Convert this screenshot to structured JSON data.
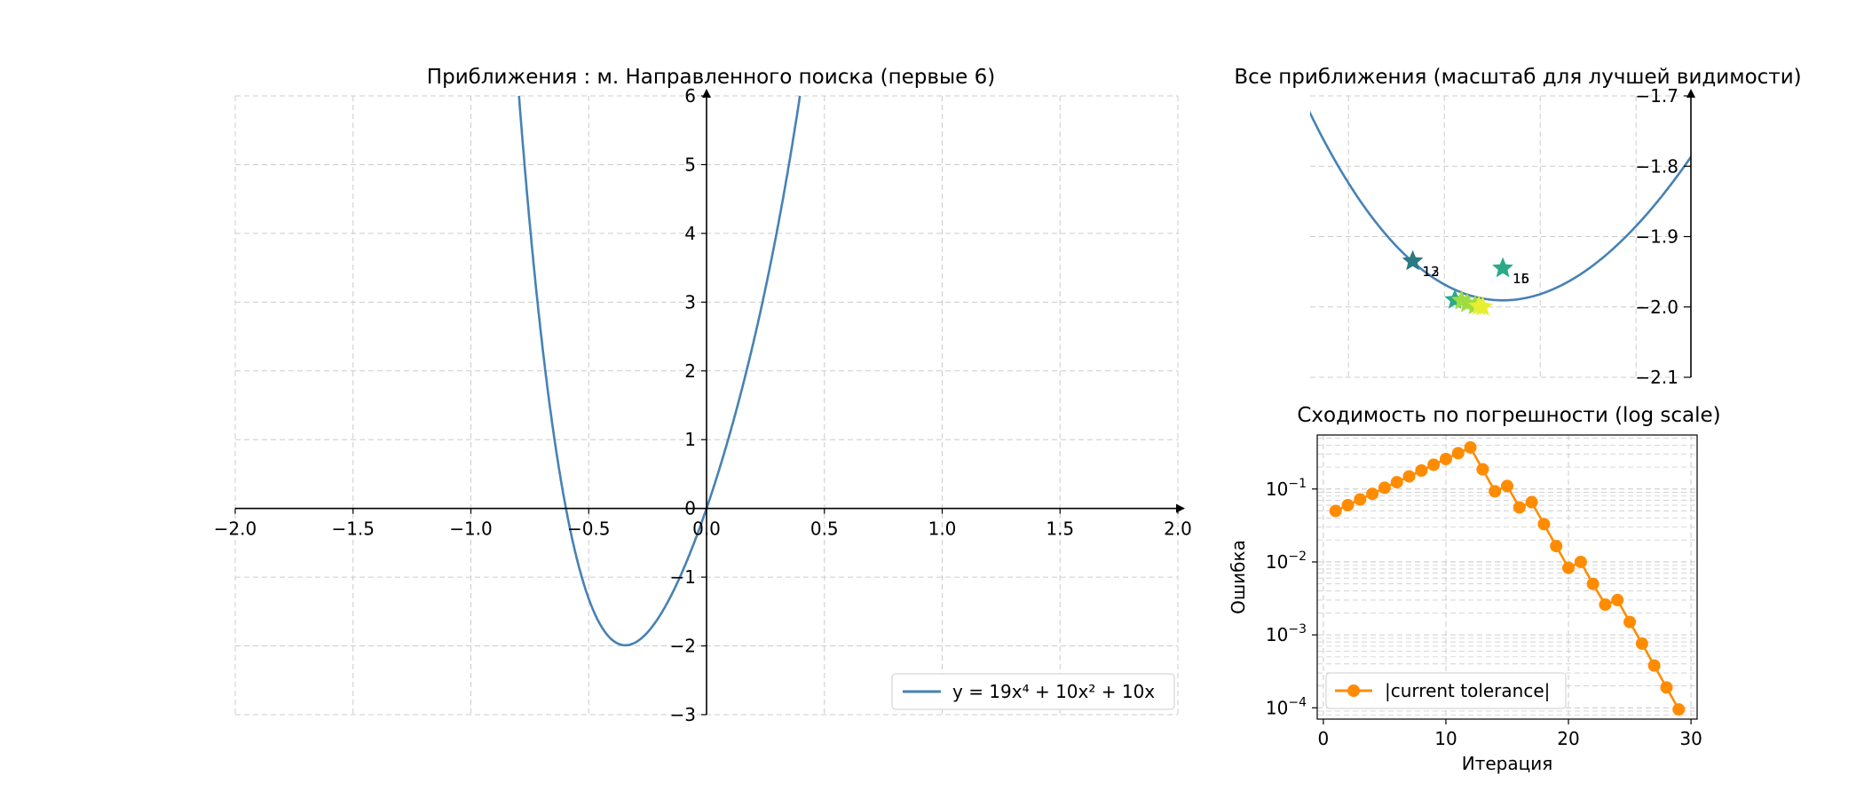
{
  "colors": {
    "curve": "#4682b4",
    "tolerance": "#ff8c00",
    "grid": "#cccccc",
    "legend_border": "#cccccc",
    "star_early": "#2a7a82",
    "star_mid": "#2aaa8a",
    "star_late": "#9edc40",
    "star_last": "#e8ee30"
  },
  "chart_data": [
    {
      "type": "line",
      "title": "Приближения : м. Направленного поиска (первые 6)",
      "function": {
        "coeffs": {
          "x4": 19,
          "x2": 10,
          "x1": 10
        }
      },
      "series": [
        {
          "name": "y = 19x⁴ + 10x² + 10x"
        }
      ],
      "xlim": [
        -2.0,
        2.0
      ],
      "ylim": [
        -3,
        6
      ],
      "xticks": [
        -2.0,
        -1.5,
        -1.0,
        -0.5,
        0.0,
        0.5,
        1.0,
        1.5,
        2.0
      ],
      "xtick_labels": [
        "−2.0",
        "−1.5",
        "−1.0",
        "−0.5",
        "0.0",
        "0.5",
        "1.0",
        "1.5",
        "2.0"
      ],
      "yticks": [
        -3,
        -2,
        -1,
        0,
        1,
        2,
        3,
        4,
        5,
        6
      ],
      "ytick_labels": [
        "−3",
        "−2",
        "−1",
        "0",
        "1",
        "2",
        "3",
        "4",
        "5",
        "6"
      ],
      "axes_through_origin": true,
      "grid": true,
      "legend": "lower-right"
    },
    {
      "type": "scatter",
      "title": "Все приближения (масштаб для лучшей видимости)",
      "xlim": [
        -0.445,
        -0.245
      ],
      "ylim": [
        -2.1,
        -1.7
      ],
      "xgrid": [
        -0.425,
        -0.375,
        -0.325,
        -0.275
      ],
      "yticks": [
        -2.1,
        -2.0,
        -1.9,
        -1.8,
        -1.7
      ],
      "ytick_labels": [
        "−2.1",
        "−2.0",
        "−1.9",
        "−1.8",
        "−1.7"
      ],
      "grid": true,
      "points": [
        {
          "x": -0.3915,
          "y": -1.935,
          "label": "12",
          "tone": "early"
        },
        {
          "x": -0.3915,
          "y": -1.935,
          "label": "13",
          "tone": "early"
        },
        {
          "x": -0.3445,
          "y": -1.945,
          "label": "15",
          "tone": "mid"
        },
        {
          "x": -0.3445,
          "y": -1.945,
          "label": "16",
          "tone": "mid"
        },
        {
          "x": -0.3695,
          "y": -1.99,
          "label": "",
          "tone": "mid"
        },
        {
          "x": -0.366,
          "y": -1.991,
          "label": "",
          "tone": "late"
        },
        {
          "x": -0.363,
          "y": -1.995,
          "label": "",
          "tone": "late"
        },
        {
          "x": -0.359,
          "y": -1.998,
          "label": "",
          "tone": "late"
        },
        {
          "x": -0.357,
          "y": -1.999,
          "label": "",
          "tone": "last"
        },
        {
          "x": -0.355,
          "y": -2.0,
          "label": "",
          "tone": "last"
        }
      ]
    },
    {
      "type": "line",
      "title": "Сходимость по погрешности (log scale)",
      "xlabel": "Итерация",
      "ylabel": "Ошибка",
      "yscale": "log",
      "xlim": [
        -0.5,
        30.5
      ],
      "ylim": [
        7e-05,
        0.55
      ],
      "xticks": [
        0,
        10,
        20,
        30
      ],
      "xtick_labels": [
        "0",
        "10",
        "20",
        "30"
      ],
      "yticks": [
        0.0001,
        0.001,
        0.01,
        0.1
      ],
      "ytick_labels": [
        "10",
        "10",
        "10",
        "10"
      ],
      "ytick_exponents": [
        "−4",
        "−3",
        "−2",
        "−1"
      ],
      "grid": true,
      "legend": "lower-left",
      "series": [
        {
          "name": "|current tolerance|",
          "x": [
            1,
            2,
            3,
            4,
            5,
            6,
            7,
            8,
            9,
            10,
            11,
            12,
            13,
            14,
            15,
            16,
            17,
            18,
            19,
            20,
            21,
            22,
            23,
            24,
            25,
            26,
            27,
            28,
            29
          ],
          "y": [
            0.05,
            0.06,
            0.072,
            0.086,
            0.104,
            0.124,
            0.149,
            0.179,
            0.215,
            0.258,
            0.31,
            0.372,
            0.186,
            0.093,
            0.11,
            0.056,
            0.066,
            0.033,
            0.0165,
            0.0083,
            0.01,
            0.005,
            0.0026,
            0.003,
            0.0015,
            0.00076,
            0.00038,
            0.00019,
            9.5e-05
          ]
        }
      ]
    }
  ]
}
